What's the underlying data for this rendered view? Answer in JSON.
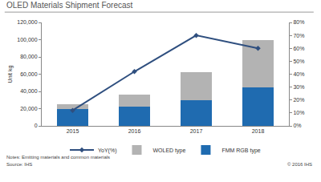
{
  "chart_data": {
    "type": "bar",
    "title": "OLED Materials Shipment Forecast",
    "categories": [
      "2015",
      "2016",
      "2017",
      "2018"
    ],
    "stacked": true,
    "grid": false,
    "legend": "bottom",
    "series": [
      {
        "name": "FMM RGB type",
        "type": "bar",
        "color": "#1f6bb0",
        "values": [
          20000,
          22000,
          30000,
          45000
        ]
      },
      {
        "name": "WOLED type",
        "type": "bar",
        "color": "#b3b3b3",
        "values": [
          5000,
          14000,
          32000,
          55000
        ]
      },
      {
        "name": "YoY(%)",
        "type": "line",
        "axis": "y2",
        "color": "#2f4f7f",
        "marker": "diamond",
        "values": [
          12,
          42,
          70,
          60
        ]
      }
    ],
    "y_label": "Unit kg",
    "ylim": [
      0,
      120000
    ],
    "yticks": [
      0,
      {
        "value": 20000,
        "label": "20,000"
      },
      {
        "value": 40000,
        "label": "40,000"
      },
      {
        "value": 60000,
        "label": "60,000"
      },
      {
        "value": 80000,
        "label": "80,000"
      },
      {
        "value": 100000,
        "label": "100,000"
      },
      {
        "value": 120000,
        "label": "120,000"
      }
    ],
    "y2lim": [
      0,
      80
    ],
    "y2ticks": [
      {
        "value": 0,
        "label": "0%"
      },
      {
        "value": 10,
        "label": "10%"
      },
      {
        "value": 20,
        "label": "20%"
      },
      {
        "value": 30,
        "label": "30%"
      },
      {
        "value": 40,
        "label": "40%"
      },
      {
        "value": 50,
        "label": "50%"
      },
      {
        "value": 60,
        "label": "60%"
      },
      {
        "value": 70,
        "label": "70%"
      },
      {
        "value": 80,
        "label": "80%"
      }
    ],
    "annotations": [
      "Notes: Emitting materials and common materials",
      "Source: IHS",
      "© 2016 IHS"
    ]
  }
}
